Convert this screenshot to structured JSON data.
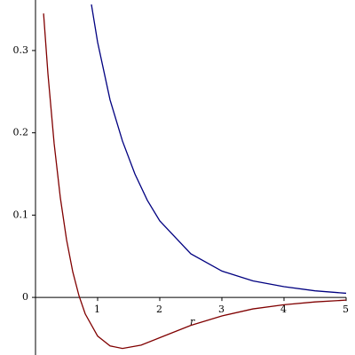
{
  "chart_data": {
    "type": "line",
    "xlabel": "r",
    "xlim": [
      0,
      5
    ],
    "ylim": [
      -0.07,
      0.356
    ],
    "xticks": [
      1,
      2,
      3,
      4,
      5
    ],
    "yticks": [
      0,
      0.1,
      0.2,
      0.3
    ],
    "series": [
      {
        "color": "#000080",
        "x": [
          0.9,
          1.0,
          1.2,
          1.4,
          1.6,
          1.8,
          2.0,
          2.5,
          3.0,
          3.5,
          4.0,
          4.5,
          5.0
        ],
        "values": [
          0.356,
          0.31,
          0.24,
          0.19,
          0.15,
          0.118,
          0.093,
          0.053,
          0.032,
          0.02,
          0.013,
          0.008,
          0.005
        ]
      },
      {
        "color": "#800000",
        "x": [
          0.13,
          0.2,
          0.3,
          0.4,
          0.5,
          0.6,
          0.7,
          0.8,
          1.0,
          1.2,
          1.4,
          1.7,
          2.0,
          2.5,
          3.0,
          3.5,
          4.0,
          4.5,
          5.0
        ],
        "values": [
          0.345,
          0.272,
          0.187,
          0.121,
          0.07,
          0.031,
          0.002,
          -0.02,
          -0.047,
          -0.059,
          -0.062,
          -0.058,
          -0.049,
          -0.034,
          -0.0225,
          -0.014,
          -0.0089,
          -0.0055,
          -0.0033
        ]
      }
    ]
  }
}
